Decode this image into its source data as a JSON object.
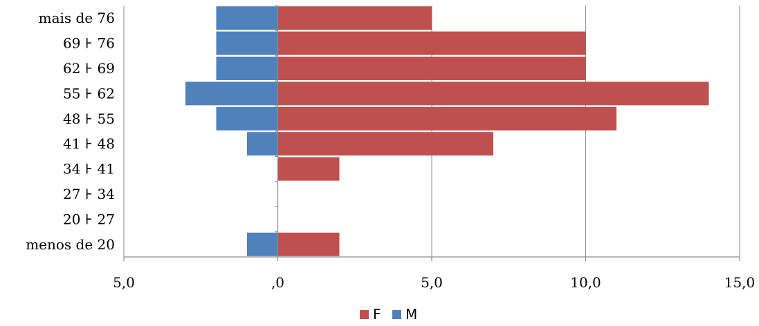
{
  "chart_data": {
    "type": "bar",
    "orientation": "horizontal",
    "categories": [
      "mais de 76",
      "69 ⊦ 76",
      "62 ⊦ 69",
      "55 ⊦ 62",
      "48 ⊦ 55",
      "41 ⊦ 48",
      "34 ⊦ 41",
      "27 ⊦ 34",
      "20 ⊦ 27",
      "menos de 20"
    ],
    "series": [
      {
        "name": "F",
        "color": "#c0504d",
        "values": [
          5,
          10,
          10,
          14,
          11,
          7,
          2,
          0,
          0,
          2
        ]
      },
      {
        "name": "M",
        "color": "#4f81bd",
        "values": [
          -2,
          -2,
          -2,
          -3,
          -2,
          -1,
          0,
          0,
          0,
          -1
        ]
      }
    ],
    "xlim": [
      -5,
      15
    ],
    "xticks": [
      -5,
      0,
      5,
      10,
      15
    ],
    "xtick_labels": [
      "5,0",
      ",0",
      "5,0",
      "10,0",
      "15,0"
    ],
    "grid": true,
    "legend_position": "bottom"
  }
}
